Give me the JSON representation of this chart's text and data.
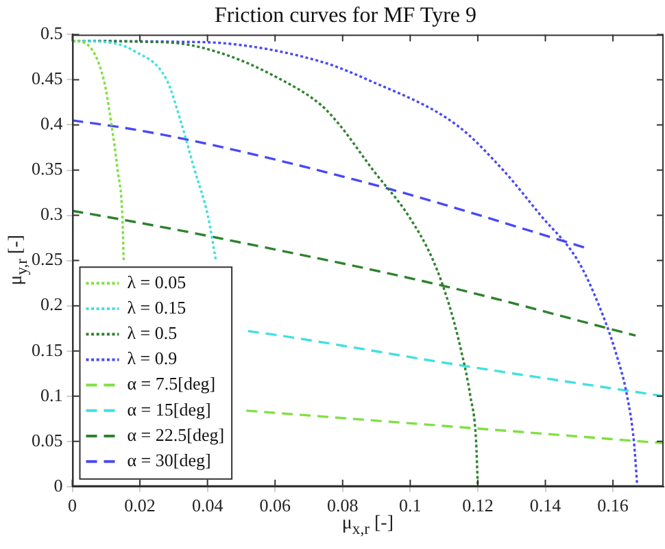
{
  "chart_data": {
    "type": "line",
    "title": "Friction curves for MF Tyre 9",
    "xlabel": "μ$_{x,r}$ [-]",
    "ylabel": "μ$_{y,r}$ [-]",
    "xlim": [
      0,
      0.175
    ],
    "ylim": [
      0,
      0.5
    ],
    "xticks": [
      0,
      0.02,
      0.04,
      0.06,
      0.08,
      0.1,
      0.12,
      0.14,
      0.16
    ],
    "yticks": [
      0,
      0.05,
      0.1,
      0.15,
      0.2,
      0.25,
      0.3,
      0.35,
      0.4,
      0.45,
      0.5
    ],
    "grid": false,
    "legend": "bottom left",
    "series": [
      {
        "name": "λ = 0.05",
        "color": "#7fe040",
        "line_style": "dotted",
        "x": [
          0,
          0.004,
          0.0093,
          0.0116,
          0.0134,
          0.0148,
          0.0152
        ],
        "values": [
          0.493,
          0.49,
          0.45,
          0.4,
          0.35,
          0.3,
          0.25
        ]
      },
      {
        "name": "λ = 0.15",
        "color": "#40e0e0",
        "line_style": "dotted",
        "x": [
          0,
          0.0113,
          0.0182,
          0.0279,
          0.0324,
          0.0362,
          0.0401,
          0.0425
        ],
        "values": [
          0.493,
          0.491,
          0.482,
          0.45,
          0.4,
          0.35,
          0.3,
          0.25
        ]
      },
      {
        "name": "λ = 0.5",
        "color": "#2e822e",
        "line_style": "dotted",
        "x": [
          0,
          0.02,
          0.032,
          0.0459,
          0.0598,
          0.0736,
          0.0791,
          0.089,
          0.0994,
          0.1068,
          0.1116,
          0.1151,
          0.1178,
          0.1195,
          0.12
        ],
        "values": [
          0.493,
          0.492,
          0.49,
          0.477,
          0.454,
          0.422,
          0.4,
          0.35,
          0.3,
          0.25,
          0.2,
          0.15,
          0.1,
          0.05,
          0
        ]
      },
      {
        "name": "λ = 0.9",
        "color": "#4848f8",
        "line_style": "dotted",
        "x": [
          0,
          0.03,
          0.0459,
          0.0736,
          0.0874,
          0.1137,
          0.1275,
          0.1386,
          0.1496,
          0.1559,
          0.1607,
          0.1642,
          0.1662,
          0.1672
        ],
        "values": [
          0.493,
          0.492,
          0.49,
          0.47,
          0.45,
          0.4,
          0.35,
          0.3,
          0.25,
          0.2,
          0.15,
          0.1,
          0.05,
          0
        ]
      },
      {
        "name": "α = 7.5[deg]",
        "color": "#7fe040",
        "line_style": "dashed",
        "x": [
          0.0515,
          0.1206,
          0.175
        ],
        "values": [
          0.084,
          0.064,
          0.048
        ]
      },
      {
        "name": "α = 15[deg]",
        "color": "#40e0e0",
        "line_style": "dashed",
        "x": [
          0.052,
          0.0598,
          0.1151,
          0.175
        ],
        "values": [
          0.172,
          0.168,
          0.134,
          0.1
        ]
      },
      {
        "name": "α = 22.5[deg]",
        "color": "#2e822e",
        "line_style": "dashed",
        "x": [
          0,
          0.0166,
          0.0418,
          0.1098,
          0.1667
        ],
        "values": [
          0.305,
          0.294,
          0.276,
          0.222,
          0.167
        ]
      },
      {
        "name": "α = 30[deg]",
        "color": "#4848f8",
        "line_style": "dashed",
        "x": [
          0,
          0.0166,
          0.04,
          0.094,
          0.152
        ],
        "values": [
          0.405,
          0.396,
          0.379,
          0.329,
          0.264
        ]
      }
    ]
  }
}
